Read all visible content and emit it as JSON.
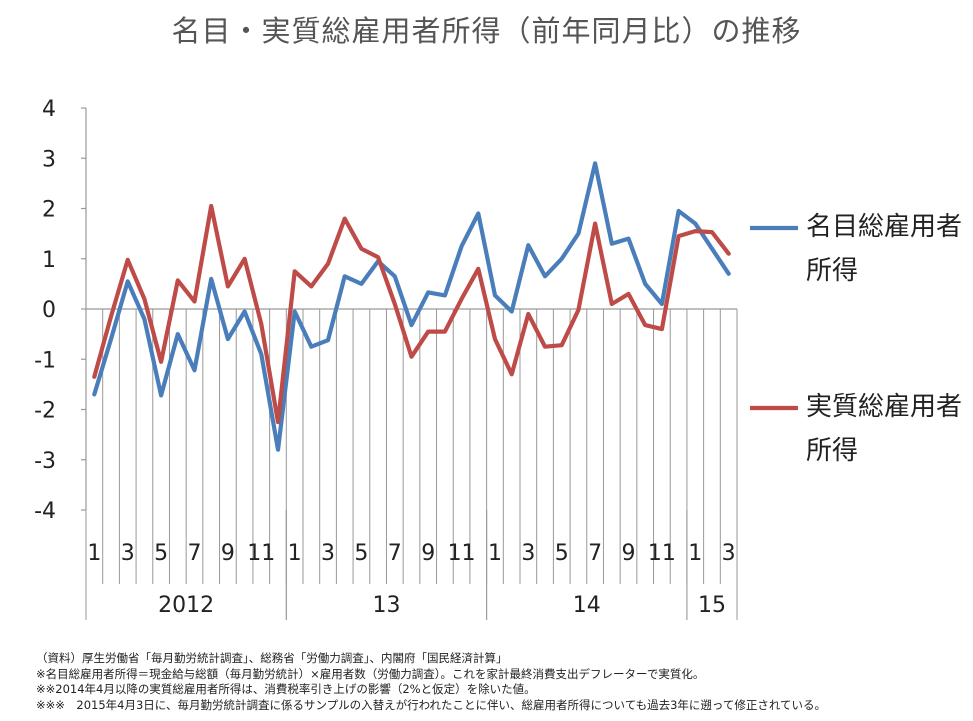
{
  "chart_data": {
    "type": "line",
    "title": "名目・実質総雇用者所得（前年同月比）の推移",
    "ylim": [
      -4,
      4
    ],
    "yticks": [
      "4",
      "3",
      "2",
      "1",
      "0",
      "-1",
      "-2",
      "-3",
      "-4"
    ],
    "month_labels": [
      "1",
      "",
      "3",
      "",
      "5",
      "",
      "7",
      "",
      "9",
      "",
      "11",
      "",
      "1",
      "",
      "3",
      "",
      "5",
      "",
      "7",
      "",
      "9",
      "",
      "11",
      "",
      "1",
      "",
      "3",
      "",
      "5",
      "",
      "7",
      "",
      "9",
      "",
      "11",
      "",
      "1",
      "",
      "3"
    ],
    "year_labels": [
      {
        "label": "2012",
        "start": 0,
        "end": 12
      },
      {
        "label": "13",
        "start": 12,
        "end": 24
      },
      {
        "label": "14",
        "start": 24,
        "end": 36
      },
      {
        "label": "15",
        "start": 36,
        "end": 39
      }
    ],
    "legend_position": "right",
    "grid": false,
    "series": [
      {
        "name": "名目総雇用者所得",
        "color": "#4a7ebb",
        "values": [
          -1.7,
          -0.6,
          0.55,
          -0.2,
          -1.72,
          -0.5,
          -1.22,
          0.6,
          -0.6,
          -0.05,
          -0.9,
          -2.8,
          -0.05,
          -0.75,
          -0.62,
          0.65,
          0.5,
          0.95,
          0.65,
          -0.32,
          0.33,
          0.27,
          1.25,
          1.9,
          0.27,
          -0.05,
          1.27,
          0.65,
          1.0,
          1.5,
          2.9,
          1.3,
          1.4,
          0.5,
          0.1,
          1.95,
          1.7,
          1.2,
          0.7
        ]
      },
      {
        "name": "実質総雇用者所得",
        "color": "#be4b48",
        "values": [
          -1.35,
          -0.15,
          0.98,
          0.2,
          -1.05,
          0.57,
          0.15,
          2.05,
          0.45,
          1.0,
          -0.3,
          -2.25,
          0.75,
          0.45,
          0.9,
          1.8,
          1.2,
          1.03,
          0.1,
          -0.95,
          -0.45,
          -0.45,
          0.2,
          0.8,
          -0.6,
          -1.3,
          -0.1,
          -0.75,
          -0.72,
          -0.02,
          1.7,
          0.1,
          0.3,
          -0.32,
          -0.4,
          1.45,
          1.55,
          1.53,
          1.1
        ]
      }
    ]
  },
  "legend": {
    "nominal_line1": "名目総雇用者",
    "nominal_line2": "所得",
    "real_line1": "実質総雇用者",
    "real_line2": "所得"
  },
  "notes": [
    "（資料）厚生労働省「毎月勤労統計調査」、総務省「労働力調査」、内閣府「国民経済計算」",
    "※名目総雇用者所得＝現金給与総額（毎月勤労統計）×雇用者数（労働力調査）。これを家計最終消費支出デフレーターで実質化。",
    "※※2014年4月以降の実質総雇用者所得は、消費税率引き上げの影響（2%と仮定）を除いた値。",
    "※※※　2015年4月3日に、毎月勤労統計調査に係るサンプルの入替えが行われたことに伴い、総雇用者所得についても過去3年に遡って修正されている。"
  ]
}
